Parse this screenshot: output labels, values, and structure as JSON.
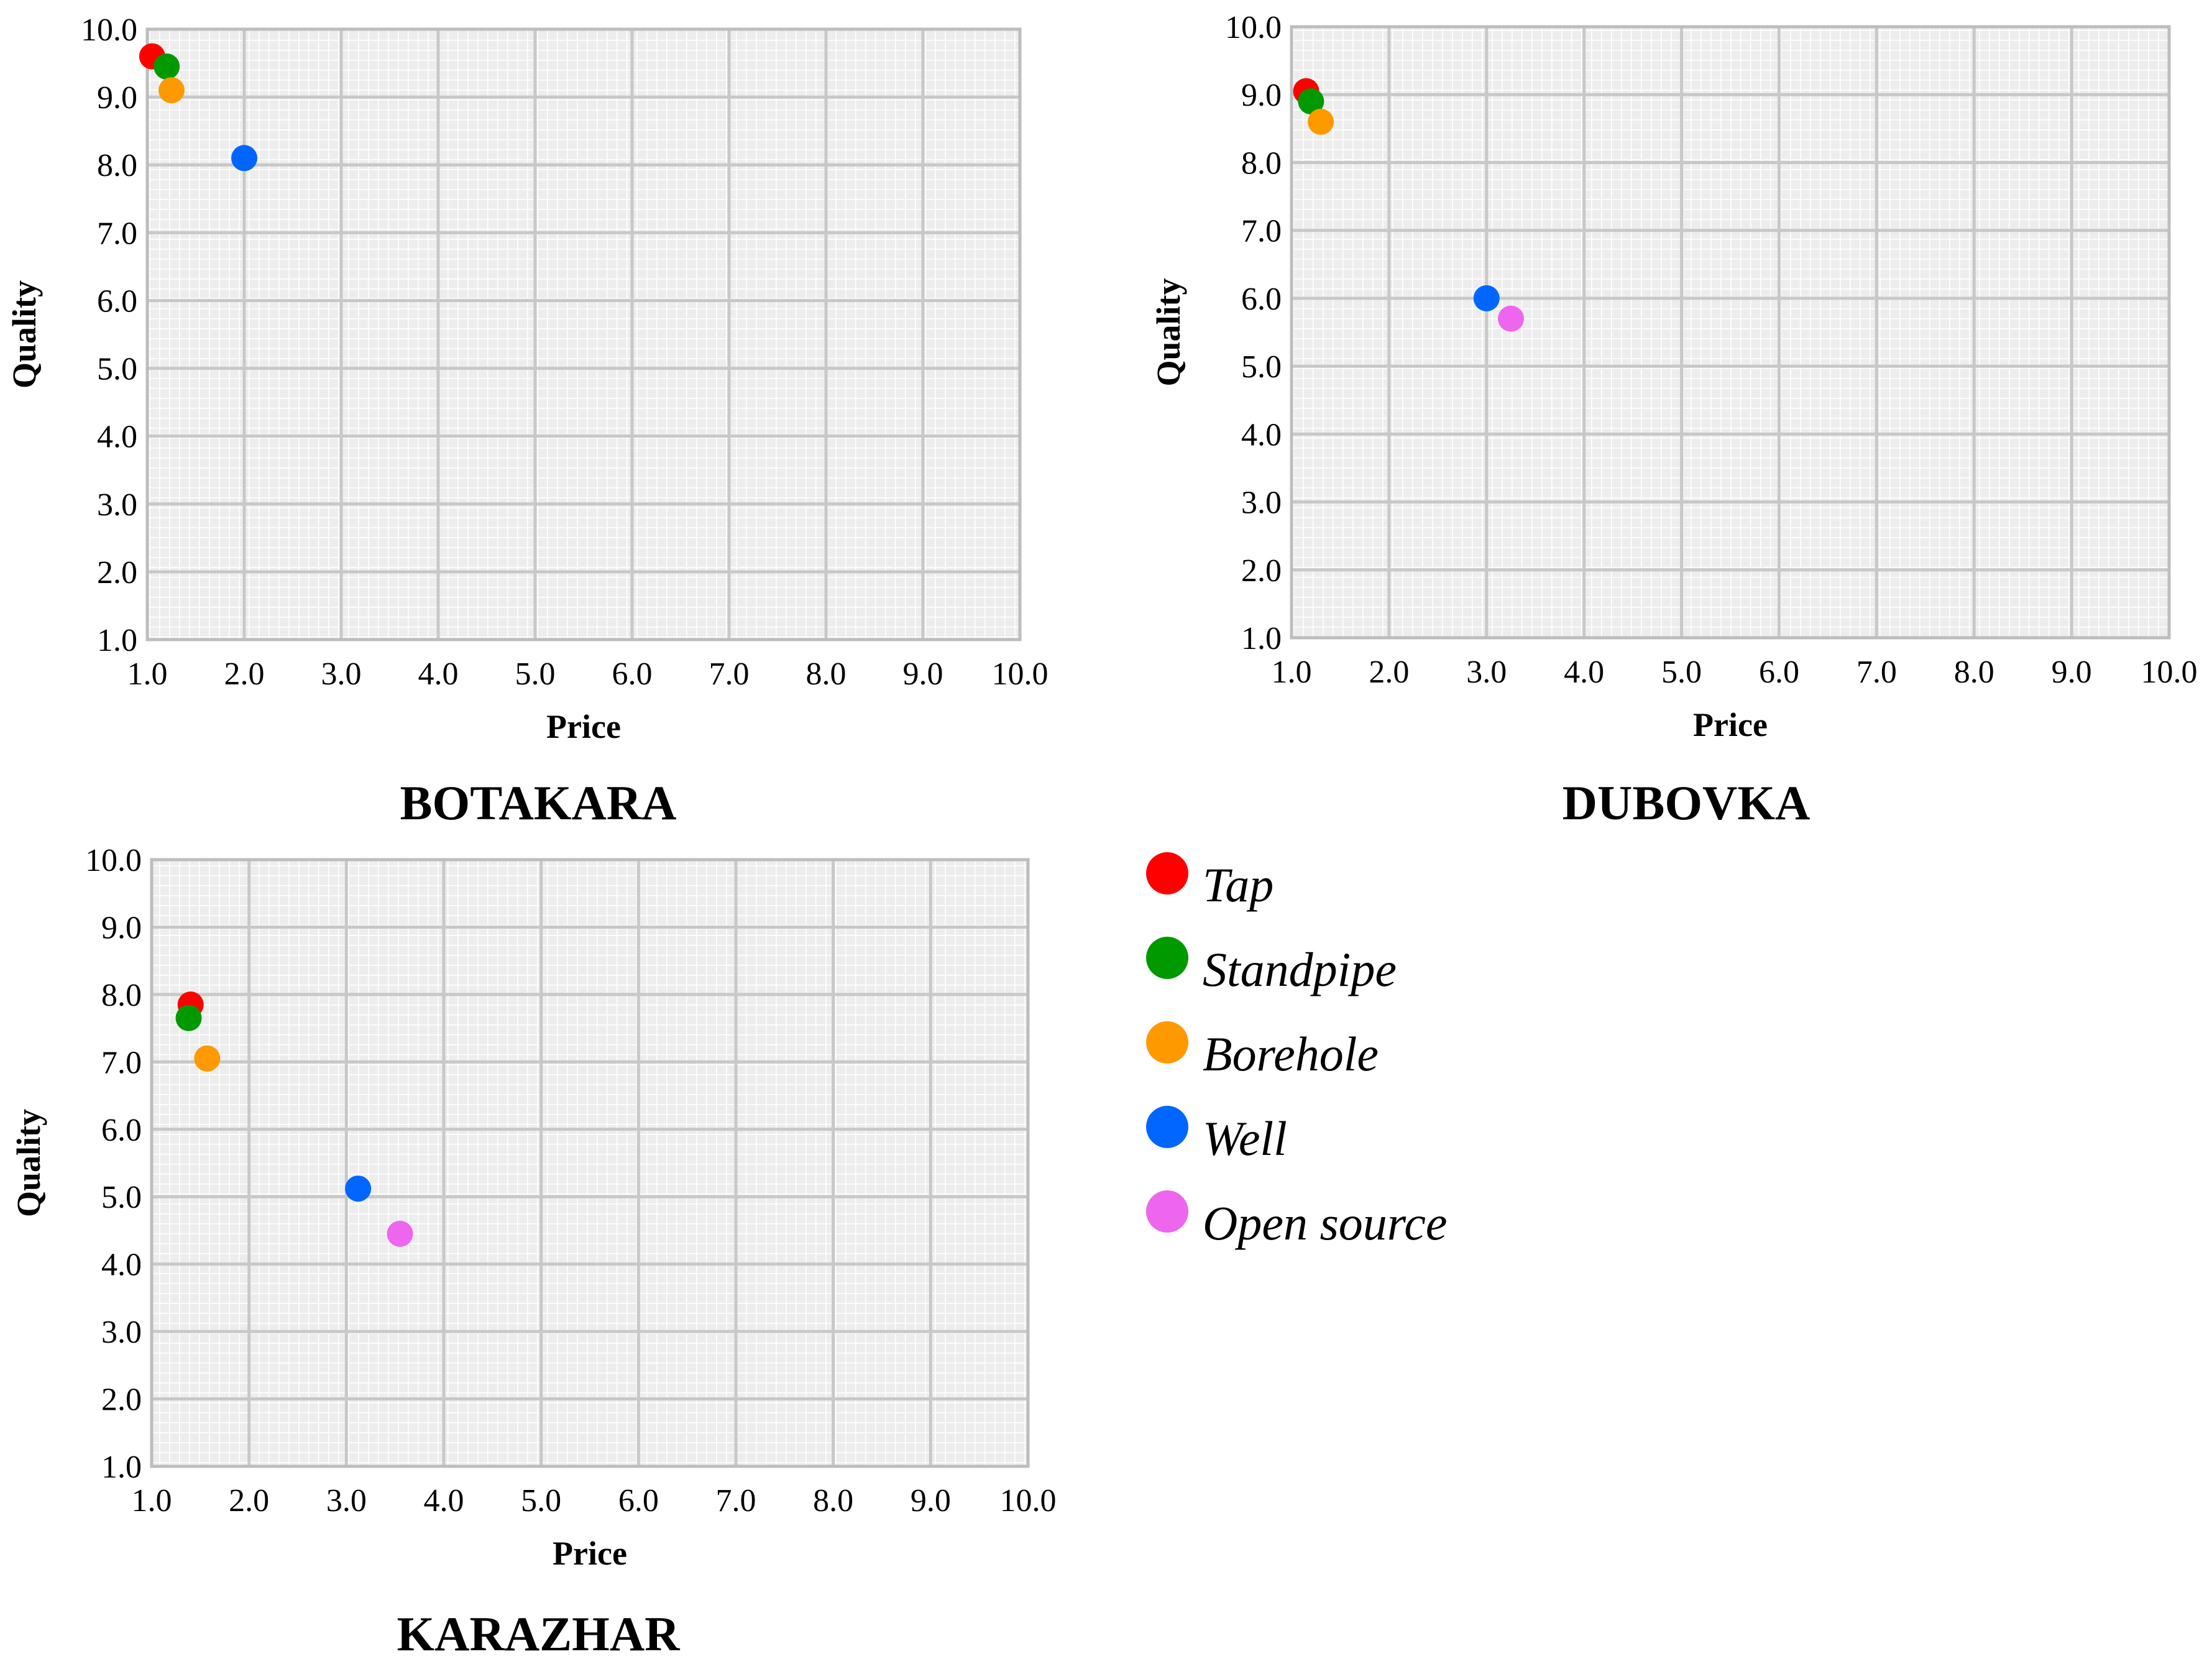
{
  "colors": {
    "Tap": "#ff0000",
    "Standpipe": "#009900",
    "Borehole": "#ff9900",
    "Well": "#0066ff",
    "Open source": "#ee66ee"
  },
  "legend": {
    "items": [
      {
        "label": "Tap",
        "color": "#ff0000"
      },
      {
        "label": "Standpipe",
        "color": "#009900"
      },
      {
        "label": "Borehole",
        "color": "#ff9900"
      },
      {
        "label": "Well",
        "color": "#0066ff"
      },
      {
        "label": "Open source",
        "color": "#ee66ee"
      }
    ]
  },
  "chart_data": [
    {
      "type": "scatter",
      "title": "BOTAKARA",
      "xlabel": "Price",
      "ylabel": "Quality",
      "xlim": [
        1.0,
        10.0
      ],
      "ylim": [
        1.0,
        10.0
      ],
      "xticks": [
        "1.0",
        "2.0",
        "3.0",
        "4.0",
        "5.0",
        "6.0",
        "7.0",
        "8.0",
        "9.0",
        "10.0"
      ],
      "yticks": [
        "1.0",
        "2.0",
        "3.0",
        "4.0",
        "5.0",
        "6.0",
        "7.0",
        "8.0",
        "9.0",
        "10.0"
      ],
      "grid": true,
      "points": [
        {
          "series": "Tap",
          "x": 1.05,
          "y": 9.6
        },
        {
          "series": "Standpipe",
          "x": 1.2,
          "y": 9.45
        },
        {
          "series": "Borehole",
          "x": 1.25,
          "y": 9.1
        },
        {
          "series": "Well",
          "x": 2.0,
          "y": 8.1
        }
      ]
    },
    {
      "type": "scatter",
      "title": "DUBOVKA",
      "xlabel": "Price",
      "ylabel": "Quality",
      "xlim": [
        1.0,
        10.0
      ],
      "ylim": [
        1.0,
        10.0
      ],
      "xticks": [
        "1.0",
        "2.0",
        "3.0",
        "4.0",
        "5.0",
        "6.0",
        "7.0",
        "8.0",
        "9.0",
        "10.0"
      ],
      "yticks": [
        "1.0",
        "2.0",
        "3.0",
        "4.0",
        "5.0",
        "6.0",
        "7.0",
        "8.0",
        "9.0",
        "10.0"
      ],
      "grid": true,
      "points": [
        {
          "series": "Tap",
          "x": 1.15,
          "y": 9.05
        },
        {
          "series": "Standpipe",
          "x": 1.2,
          "y": 8.9
        },
        {
          "series": "Borehole",
          "x": 1.3,
          "y": 8.6
        },
        {
          "series": "Well",
          "x": 3.0,
          "y": 6.0
        },
        {
          "series": "Open source",
          "x": 3.25,
          "y": 5.7
        }
      ]
    },
    {
      "type": "scatter",
      "title": "KARAZHAR",
      "xlabel": "Price",
      "ylabel": "Quality",
      "xlim": [
        1.0,
        10.0
      ],
      "ylim": [
        1.0,
        10.0
      ],
      "xticks": [
        "1.0",
        "2.0",
        "3.0",
        "4.0",
        "5.0",
        "6.0",
        "7.0",
        "8.0",
        "9.0",
        "10.0"
      ],
      "yticks": [
        "1.0",
        "2.0",
        "3.0",
        "4.0",
        "5.0",
        "6.0",
        "7.0",
        "8.0",
        "9.0",
        "10.0"
      ],
      "grid": true,
      "points": [
        {
          "series": "Tap",
          "x": 1.4,
          "y": 7.85
        },
        {
          "series": "Standpipe",
          "x": 1.38,
          "y": 7.65
        },
        {
          "series": "Borehole",
          "x": 1.57,
          "y": 7.05
        },
        {
          "series": "Well",
          "x": 3.12,
          "y": 5.12
        },
        {
          "series": "Open source",
          "x": 3.55,
          "y": 4.45
        }
      ]
    }
  ]
}
